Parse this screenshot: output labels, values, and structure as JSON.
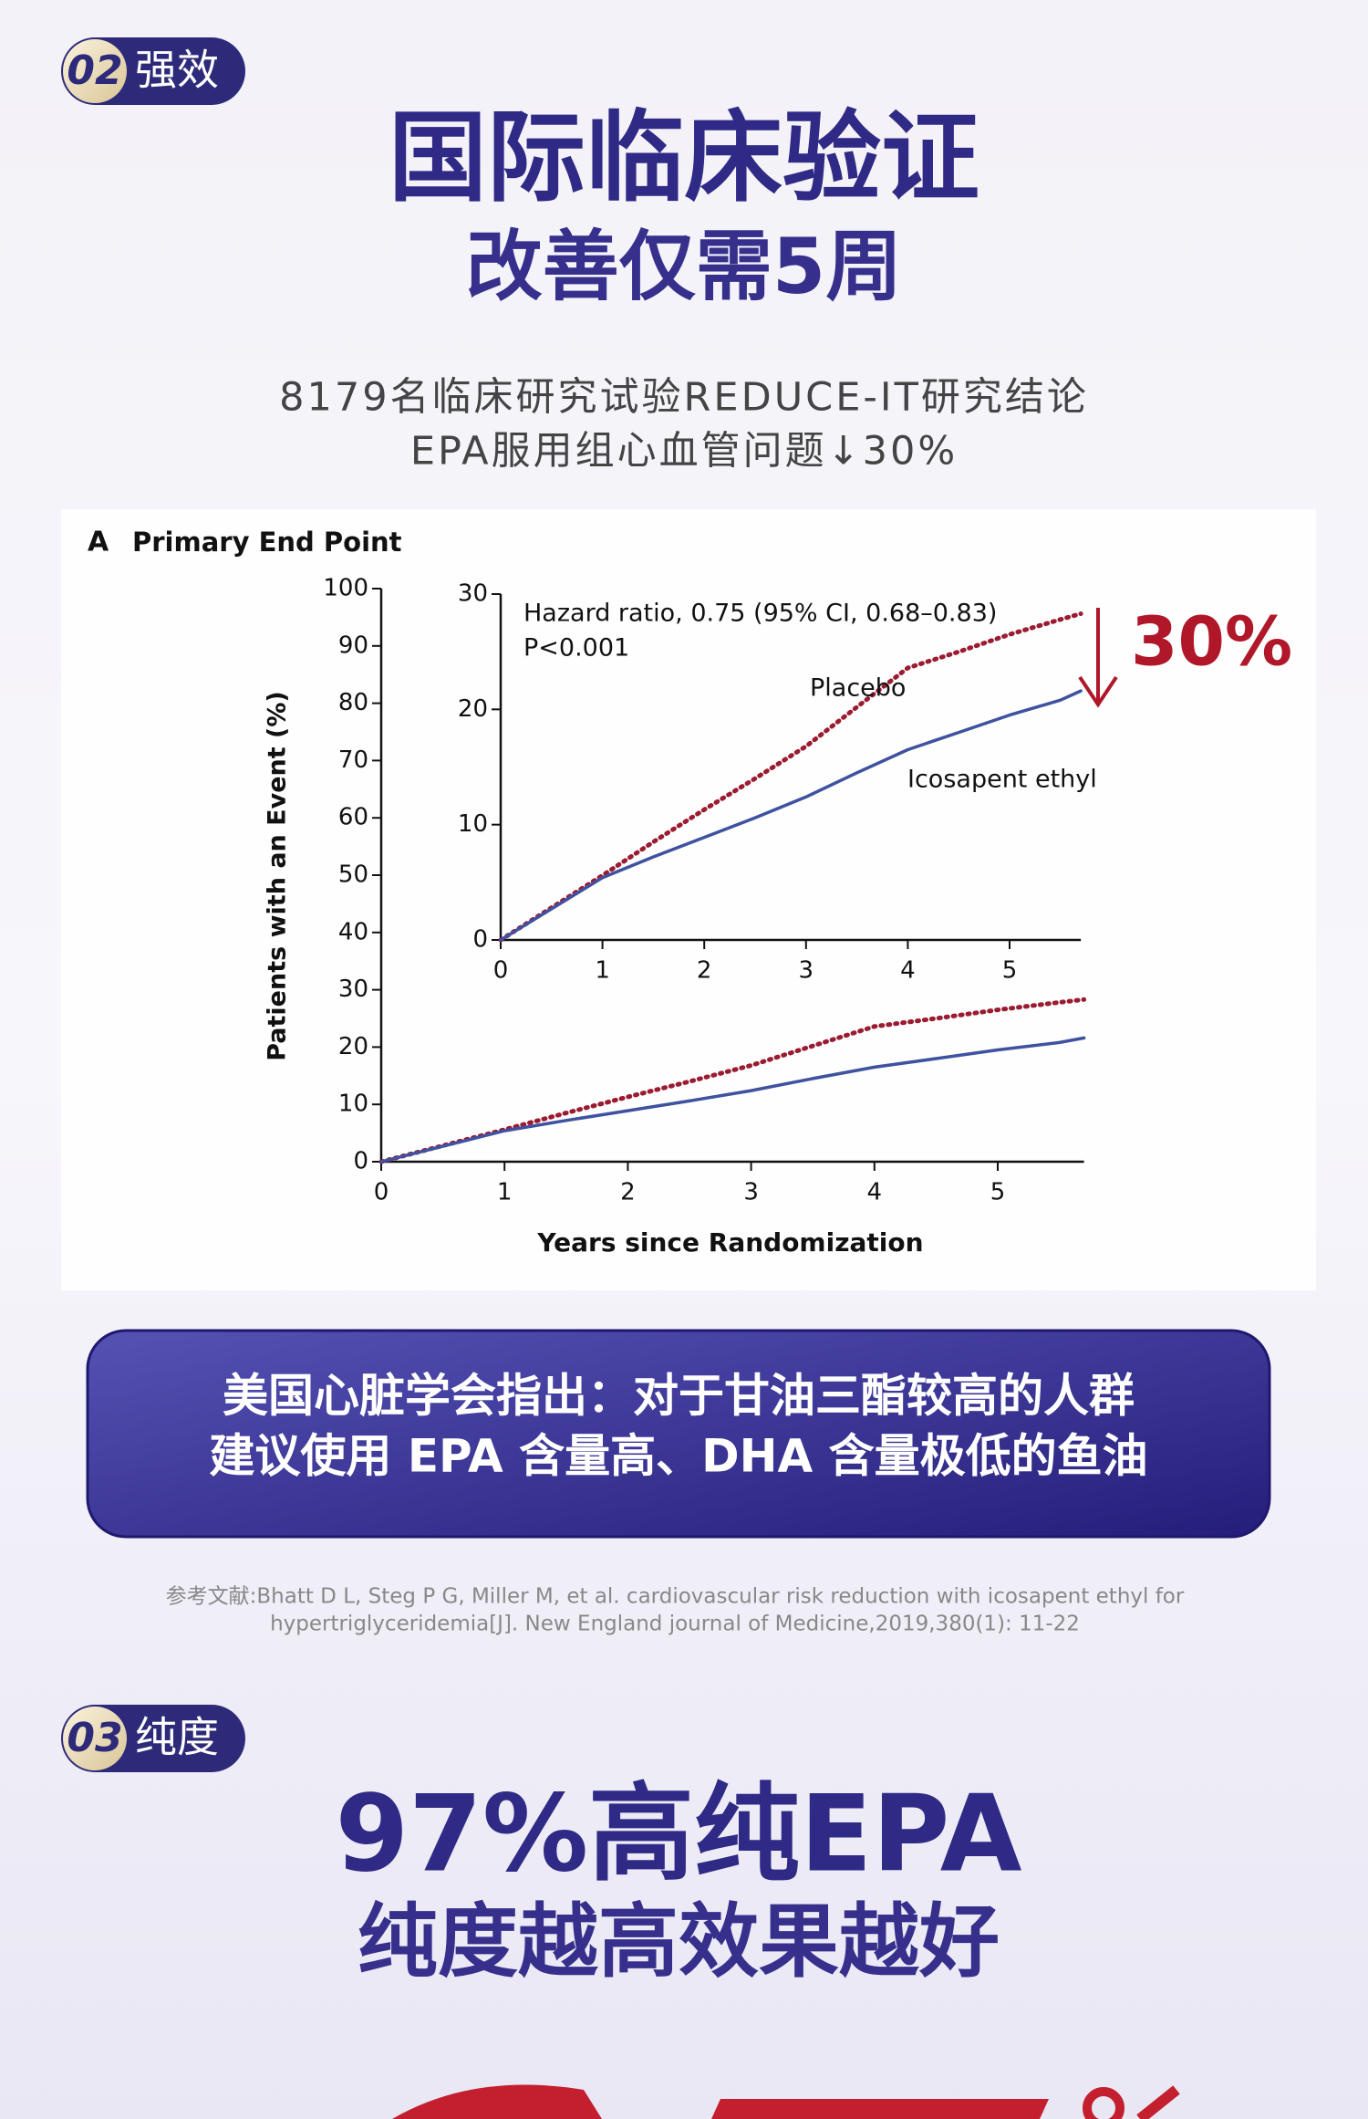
{
  "section_02": {
    "badge_number": "02",
    "badge_label": "强效",
    "title": "国际临床验证",
    "subtitle": "改善仅需5周",
    "description": [
      "8179名临床研究试验REDUCE-IT研究结论",
      "EPA服用组心血管问题↓30%"
    ]
  },
  "chart_data": {
    "type": "line",
    "panel": "A",
    "title": "Primary End Point",
    "y_label": "Patients with an Event (%)",
    "x_label": "Years since Randomization",
    "x": [
      0,
      0.5,
      1,
      1.5,
      2,
      2.5,
      3,
      3.5,
      4,
      4.5,
      5,
      5.5,
      5.7
    ],
    "series": [
      {
        "name": "Placebo",
        "color": "#9b1b30",
        "style": "dotted",
        "values": [
          0,
          2.8,
          5.6,
          8.5,
          11.3,
          14,
          16.8,
          20.2,
          23.6,
          25,
          26.5,
          27.8,
          28.3
        ]
      },
      {
        "name": "Icosapent ethyl",
        "color": "#3f52a0",
        "style": "solid",
        "values": [
          0,
          2.7,
          5.4,
          7.2,
          8.9,
          10.6,
          12.4,
          14.5,
          16.5,
          18,
          19.5,
          20.8,
          21.6
        ]
      }
    ],
    "xlim": [
      0,
      5.7
    ],
    "xticks": [
      0,
      1,
      2,
      3,
      4,
      5
    ],
    "ylim": [
      0,
      100
    ],
    "yticks": [
      0,
      10,
      20,
      30,
      40,
      50,
      60,
      70,
      80,
      90,
      100
    ],
    "inset": {
      "ylim": [
        0,
        30
      ],
      "yticks": [
        0,
        10,
        20,
        30
      ]
    },
    "annotations": [
      "Hazard ratio, 0.75 (95% CI, 0.68–0.83)",
      "P<0.001"
    ],
    "reduction_label": "30%"
  },
  "callout": {
    "lines": [
      "美国心脏学会指出：对于甘油三酯较高的人群",
      "建议使用 EPA 含量高、DHA 含量极低的鱼油"
    ]
  },
  "reference": {
    "lines": [
      "参考文献:Bhatt D L, Steg P G, Miller M, et al. cardiovascular risk reduction with icosapent ethyl for",
      "hypertriglyceridemia[J]. New England journal of Medicine,2019,380(1): 11-22"
    ]
  },
  "section_03": {
    "badge_number": "03",
    "badge_label": "纯度",
    "title": "97%高纯EPA",
    "subtitle": "纯度越高效果越好"
  }
}
